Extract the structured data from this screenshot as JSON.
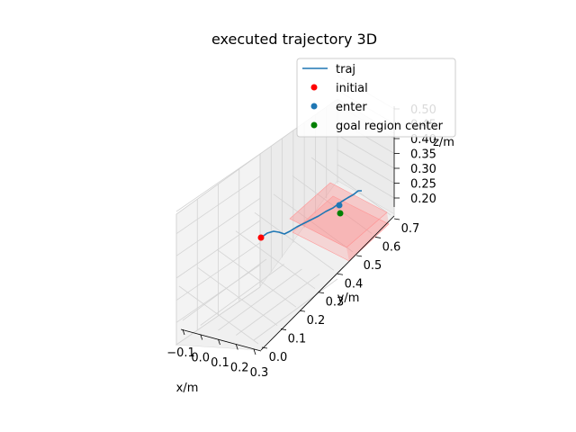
{
  "chart_data": {
    "type": "line3d",
    "title": "executed trajectory 3D",
    "xlabel": "x/m",
    "ylabel": "y/m",
    "zlabel": "z/m",
    "x_ticks": [
      "−0.1",
      "0.0",
      "0.1",
      "0.2",
      "0.3"
    ],
    "y_ticks": [
      "0.0",
      "0.1",
      "0.2",
      "0.3",
      "0.4",
      "0.5",
      "0.6",
      "0.7"
    ],
    "z_ticks": [
      "0.20",
      "0.25",
      "0.30",
      "0.35",
      "0.40",
      "0.45",
      "0.50"
    ],
    "legend": {
      "placement": "top-right",
      "entries": [
        {
          "label": "traj",
          "kind": "line",
          "color": "#1f77b4"
        },
        {
          "label": "initial",
          "kind": "marker",
          "color": "#ff0000"
        },
        {
          "label": "enter",
          "kind": "marker",
          "color": "#1f77b4"
        },
        {
          "label": "goal region center",
          "kind": "marker",
          "color": "#008000"
        }
      ]
    },
    "series": [
      {
        "name": "traj",
        "color": "#1f77b4",
        "x": [
          0.0,
          0.02,
          0.05,
          0.08,
          0.11,
          0.14,
          0.17,
          0.19,
          0.21,
          0.23
        ],
        "y": [
          0.4,
          0.43,
          0.46,
          0.49,
          0.52,
          0.55,
          0.58,
          0.61,
          0.64,
          0.67
        ],
        "z": [
          0.3,
          0.305,
          0.3,
          0.31,
          0.305,
          0.31,
          0.315,
          0.32,
          0.33,
          0.34
        ]
      }
    ],
    "points": {
      "initial": {
        "x": 0.0,
        "y": 0.4,
        "z": 0.3,
        "color": "#ff0000"
      },
      "enter": {
        "x": 0.17,
        "y": 0.58,
        "z": 0.315,
        "color": "#1f77b4"
      },
      "goal_region_center": {
        "x": 0.18,
        "y": 0.59,
        "z": 0.29,
        "color": "#008000"
      }
    },
    "goal_region": {
      "x": [
        0.07,
        0.29
      ],
      "y": [
        0.5,
        0.7
      ],
      "z": [
        0.28,
        0.32
      ],
      "color": "#ff8080"
    }
  }
}
